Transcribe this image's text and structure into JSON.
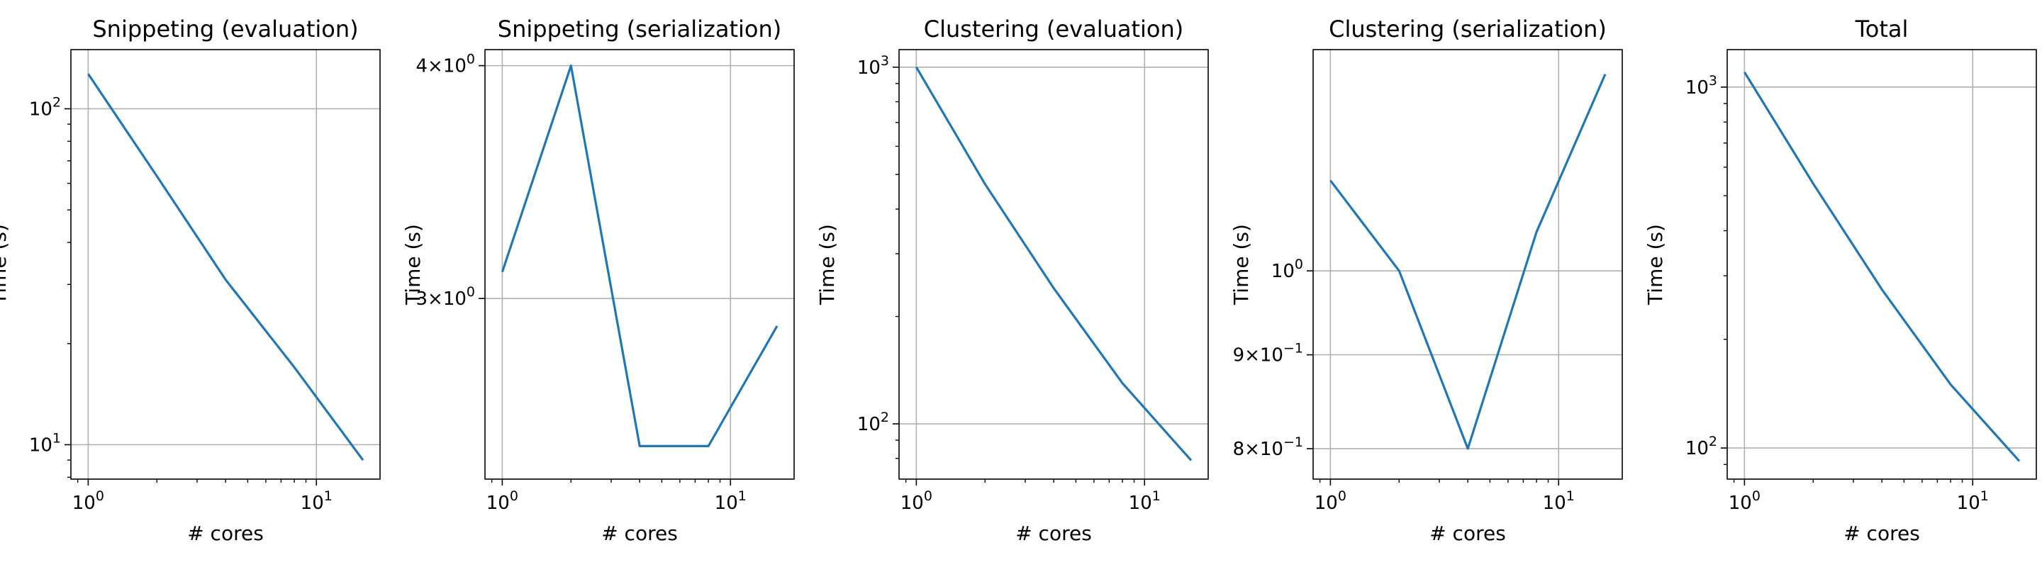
{
  "colors": {
    "line": "#1f77b4",
    "grid": "#b0b0b0",
    "axes": "#000000",
    "background": "#ffffff"
  },
  "chart_data": [
    {
      "type": "line",
      "title": "Snippeting (evaluation)",
      "xlabel": "# cores",
      "ylabel": "Time (s)",
      "xscale": "log",
      "yscale": "log",
      "xlim": [
        0.84,
        19.0
      ],
      "ylim": [
        7.9,
        150
      ],
      "grid": true,
      "x": [
        1,
        2,
        4,
        8,
        16
      ],
      "series": [
        {
          "values": [
            127,
            63,
            31,
            17,
            9.0
          ]
        }
      ],
      "xticks": [
        {
          "value": 1,
          "base": "10",
          "exp": "0"
        },
        {
          "value": 10,
          "base": "10",
          "exp": "1"
        }
      ],
      "yticks": [
        {
          "value": 10,
          "base": "10",
          "exp": "1"
        },
        {
          "value": 100,
          "base": "10",
          "exp": "2"
        }
      ]
    },
    {
      "type": "line",
      "title": "Snippeting (serialization)",
      "xlabel": "# cores",
      "ylabel": "Time (s)",
      "xscale": "log",
      "yscale": "log",
      "xlim": [
        0.84,
        19.0
      ],
      "ylim": [
        2.4,
        4.08
      ],
      "grid": true,
      "x": [
        1,
        2,
        4,
        8,
        16
      ],
      "series": [
        {
          "values": [
            3.1,
            4.0,
            2.5,
            2.5,
            2.9
          ]
        }
      ],
      "xticks": [
        {
          "value": 1,
          "base": "10",
          "exp": "0"
        },
        {
          "value": 10,
          "base": "10",
          "exp": "1"
        }
      ],
      "yticks": [
        {
          "value": 3,
          "mant": "3",
          "base": "10",
          "exp": "0"
        },
        {
          "value": 4,
          "mant": "4",
          "base": "10",
          "exp": "0"
        }
      ]
    },
    {
      "type": "line",
      "title": "Clustering (evaluation)",
      "xlabel": "# cores",
      "ylabel": "Time (s)",
      "xscale": "log",
      "yscale": "log",
      "xlim": [
        0.84,
        19.0
      ],
      "ylim": [
        70,
        1120
      ],
      "grid": true,
      "x": [
        1,
        2,
        4,
        8,
        16
      ],
      "series": [
        {
          "values": [
            1000,
            470,
            240,
            130,
            79
          ]
        }
      ],
      "xticks": [
        {
          "value": 1,
          "base": "10",
          "exp": "0"
        },
        {
          "value": 10,
          "base": "10",
          "exp": "1"
        }
      ],
      "yticks": [
        {
          "value": 100,
          "base": "10",
          "exp": "2"
        },
        {
          "value": 1000,
          "base": "10",
          "exp": "3"
        }
      ]
    },
    {
      "type": "line",
      "title": "Clustering (serialization)",
      "xlabel": "# cores",
      "ylabel": "Time (s)",
      "xscale": "log",
      "yscale": "log",
      "xlim": [
        0.84,
        19.0
      ],
      "ylim": [
        0.77,
        1.32
      ],
      "grid": true,
      "x": [
        1,
        2,
        4,
        8,
        16
      ],
      "series": [
        {
          "values": [
            1.12,
            1.0,
            0.8,
            1.05,
            1.28
          ]
        }
      ],
      "xticks": [
        {
          "value": 1,
          "base": "10",
          "exp": "0"
        },
        {
          "value": 10,
          "base": "10",
          "exp": "1"
        }
      ],
      "yticks": [
        {
          "value": 0.8,
          "mant": "8",
          "base": "10",
          "exp": "−1"
        },
        {
          "value": 0.9,
          "mant": "9",
          "base": "10",
          "exp": "−1"
        },
        {
          "value": 1.0,
          "base": "10",
          "exp": "0"
        }
      ]
    },
    {
      "type": "line",
      "title": "Total",
      "xlabel": "# cores",
      "ylabel": "Time (s)",
      "xscale": "log",
      "yscale": "log",
      "xlim": [
        0.84,
        19.0
      ],
      "ylim": [
        82,
        1270
      ],
      "grid": true,
      "x": [
        1,
        2,
        4,
        8,
        16
      ],
      "series": [
        {
          "values": [
            1100,
            540,
            275,
            150,
            92
          ]
        }
      ],
      "xticks": [
        {
          "value": 1,
          "base": "10",
          "exp": "0"
        },
        {
          "value": 10,
          "base": "10",
          "exp": "1"
        }
      ],
      "yticks": [
        {
          "value": 100,
          "base": "10",
          "exp": "2"
        },
        {
          "value": 1000,
          "base": "10",
          "exp": "3"
        }
      ]
    }
  ]
}
